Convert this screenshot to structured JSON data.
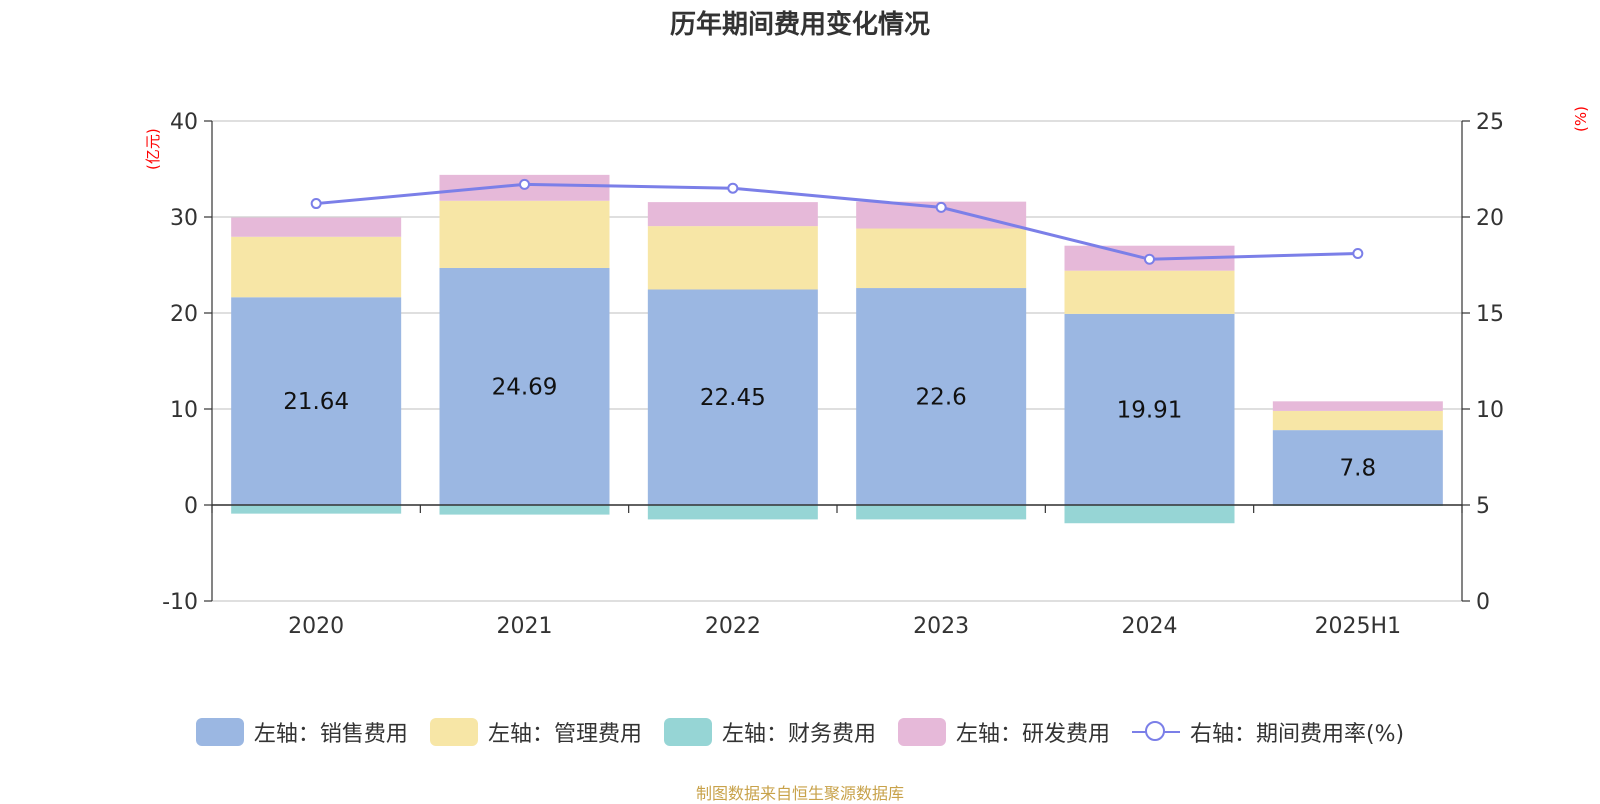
{
  "title": "历年期间费用变化情况",
  "unit_left": "(亿元)",
  "unit_right": "(%)",
  "source": "制图数据来自恒生聚源数据库",
  "colors": {
    "sales": "#9bb7e2",
    "admin": "#f7e6a6",
    "finance": "#96d5d5",
    "rd": "#e6b9d9",
    "rate": "#7b7fe8"
  },
  "legend": [
    {
      "label": "左轴：销售费用",
      "color": "#9bb7e2",
      "kind": "bar"
    },
    {
      "label": "左轴：管理费用",
      "color": "#f7e6a6",
      "kind": "bar"
    },
    {
      "label": "左轴：财务费用",
      "color": "#96d5d5",
      "kind": "bar"
    },
    {
      "label": "左轴：研发费用",
      "color": "#e6b9d9",
      "kind": "bar"
    },
    {
      "label": "右轴：期间费用率(%)",
      "color": "#7b7fe8",
      "kind": "line"
    }
  ],
  "chart_data": {
    "type": "bar",
    "stacked": true,
    "categories": [
      "2020",
      "2021",
      "2022",
      "2023",
      "2024",
      "2025H1"
    ],
    "series": [
      {
        "name": "左轴：销售费用",
        "axis": "left",
        "values": [
          21.64,
          24.69,
          22.45,
          22.6,
          19.91,
          7.8
        ],
        "labels": [
          "21.64",
          "24.69",
          "22.45",
          "22.6",
          "19.91",
          "7.8"
        ]
      },
      {
        "name": "左轴：管理费用",
        "axis": "left",
        "values": [
          6.3,
          7.0,
          6.6,
          6.2,
          4.5,
          2.0
        ]
      },
      {
        "name": "左轴：财务费用",
        "axis": "left",
        "values": [
          -0.9,
          -1.0,
          -1.5,
          -1.5,
          -1.9,
          -0.1
        ]
      },
      {
        "name": "左轴：研发费用",
        "axis": "left",
        "values": [
          2.0,
          2.7,
          2.5,
          2.8,
          2.6,
          1.0
        ]
      },
      {
        "name": "右轴：期间费用率(%)",
        "axis": "right",
        "type": "line",
        "values": [
          20.7,
          21.7,
          21.5,
          20.5,
          17.8,
          18.1
        ]
      }
    ],
    "y_left": {
      "min": -10,
      "max": 40,
      "ticks": [
        -10,
        0,
        10,
        20,
        30,
        40
      ]
    },
    "y_right": {
      "min": 0,
      "max": 25,
      "ticks": [
        0,
        5,
        10,
        15,
        20,
        25
      ]
    },
    "grid": true,
    "legend_position": "bottom"
  }
}
